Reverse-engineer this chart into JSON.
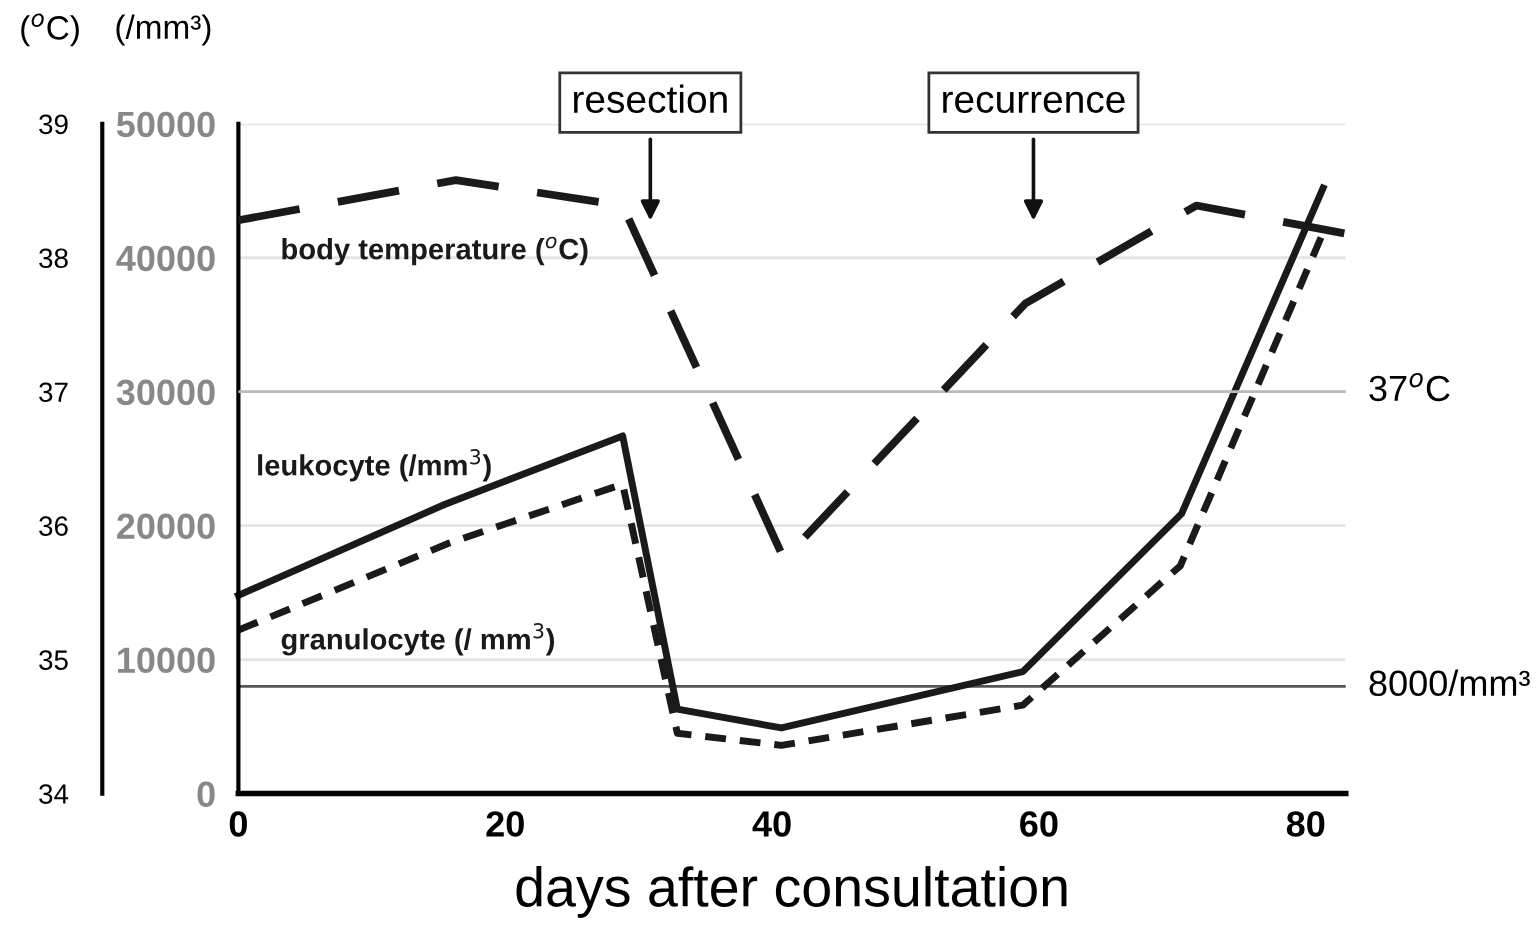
{
  "chart_data": {
    "type": "line",
    "xlabel": "days after consultation",
    "ylabel": "(/mm³)",
    "y2label": "($^{o}$C)",
    "xlim": [
      0,
      83
    ],
    "xticks": [
      0,
      20,
      40,
      60,
      80
    ],
    "ylim": [
      0,
      50000
    ],
    "yticks": [
      0,
      10000,
      20000,
      30000,
      40000,
      50000
    ],
    "y2lim": [
      34,
      39
    ],
    "y2ticks": [
      34,
      35,
      36,
      37,
      38,
      39
    ],
    "grid": "y",
    "series": [
      {
        "name": "body temperature ($^{o}$C)",
        "color": "#1a1a1a",
        "axis": "y2",
        "line_style": "dashed",
        "x": [
          0,
          16.3,
          28.8,
          40.9,
          59,
          71.8,
          83
        ],
        "values": [
          38.28,
          38.58,
          38.39,
          35.75,
          37.66,
          38.39,
          38.18
        ]
      },
      {
        "name": "leukocyte (/mm$^{3}$)",
        "color": "#1a1a1a",
        "line_style": "solid",
        "x": [
          0,
          15.5,
          28.8,
          32.9,
          40.7,
          58.8,
          70.7,
          81.3
        ],
        "values": [
          14800,
          21600,
          26700,
          6300,
          4900,
          9100,
          20900,
          45200
        ]
      },
      {
        "name": "granulocyte (/ mm$^{3}$)",
        "color": "#1a1a1a",
        "line_style": "dotted",
        "x": [
          0,
          15.8,
          28.8,
          32.9,
          40.7,
          58.8,
          70.6,
          81.4
        ],
        "values": [
          12200,
          18700,
          23100,
          4500,
          3600,
          6600,
          17000,
          42100
        ]
      }
    ],
    "ref_lines": [
      {
        "axis": "y2",
        "value": 37,
        "label": "37$^{o}$C",
        "color": "#bbbbbb"
      },
      {
        "axis": "y",
        "value": 8000,
        "label": "8000/mm³",
        "color": "#555555"
      }
    ],
    "annotations": [
      "resection",
      "recurrence"
    ]
  }
}
